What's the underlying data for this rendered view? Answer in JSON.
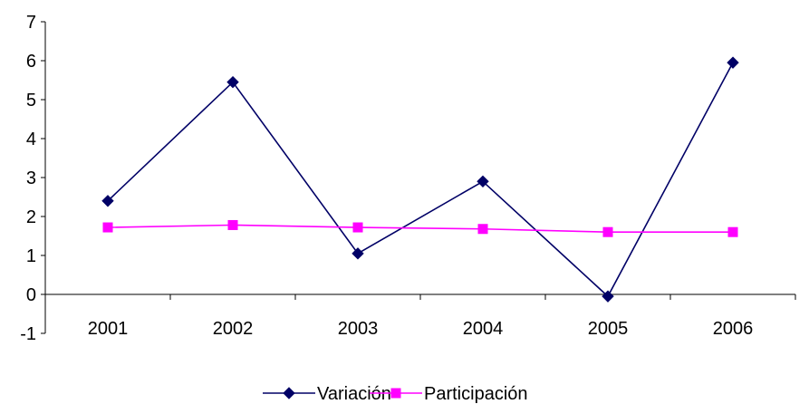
{
  "chart_data": {
    "type": "line",
    "categories": [
      "2001",
      "2002",
      "2003",
      "2004",
      "2005",
      "2006"
    ],
    "series": [
      {
        "name": "Variación",
        "values": [
          2.4,
          5.45,
          1.05,
          2.9,
          -0.05,
          5.95
        ],
        "color": "#000066",
        "marker": "diamond"
      },
      {
        "name": "Participación",
        "values": [
          1.72,
          1.78,
          1.72,
          1.68,
          1.6,
          1.6
        ],
        "color": "#ff00ff",
        "marker": "square"
      }
    ],
    "ylim": [
      -1,
      7
    ],
    "yticks": [
      "-1",
      "0",
      "1",
      "2",
      "3",
      "4",
      "5",
      "6",
      "7"
    ],
    "grid": false,
    "legend_position": "bottom"
  }
}
